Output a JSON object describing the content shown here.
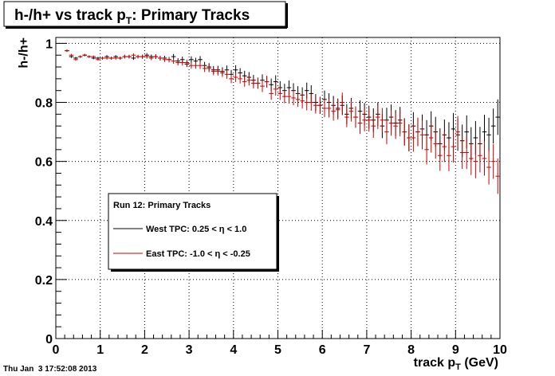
{
  "chart_data": {
    "type": "scatter",
    "title": {
      "main": "h-/h+ vs track p",
      "sub": "T",
      "rest": ": Primary Tracks"
    },
    "xlabel": {
      "main": "track p",
      "sub": "T",
      "rest": " (GeV)"
    },
    "ylabel": "h-/h+",
    "xlim": [
      0,
      10
    ],
    "ylim": [
      0,
      1.02
    ],
    "x_ticks": [
      0,
      1,
      2,
      3,
      4,
      5,
      6,
      7,
      8,
      9,
      10
    ],
    "x_tick_labels": [
      "0",
      "1",
      "2",
      "3",
      "4",
      "5",
      "6",
      "7",
      "8",
      "9",
      "10"
    ],
    "y_ticks": [
      0,
      0.2,
      0.4,
      0.6,
      0.8,
      1
    ],
    "y_tick_labels": [
      "0",
      "0.2",
      "0.4",
      "0.6",
      "0.8",
      "1"
    ],
    "grid": true,
    "legend_position": "lower-left",
    "legend_title": "Run 12: Primary Tracks",
    "series": [
      {
        "name": "West TPC: 0.25 < η < 1.0",
        "color": "#000000",
        "x": [
          0.25,
          0.35,
          0.45,
          0.55,
          0.65,
          0.75,
          0.85,
          0.95,
          1.05,
          1.15,
          1.25,
          1.35,
          1.45,
          1.55,
          1.65,
          1.75,
          1.85,
          1.95,
          2.05,
          2.15,
          2.25,
          2.35,
          2.45,
          2.55,
          2.65,
          2.75,
          2.85,
          2.95,
          3.05,
          3.15,
          3.25,
          3.35,
          3.45,
          3.55,
          3.65,
          3.75,
          3.85,
          3.95,
          4.05,
          4.15,
          4.25,
          4.35,
          4.45,
          4.55,
          4.65,
          4.75,
          4.85,
          4.95,
          5.05,
          5.15,
          5.25,
          5.35,
          5.45,
          5.55,
          5.65,
          5.75,
          5.85,
          5.95,
          6.05,
          6.15,
          6.25,
          6.35,
          6.45,
          6.55,
          6.65,
          6.75,
          6.85,
          6.95,
          7.05,
          7.15,
          7.25,
          7.35,
          7.45,
          7.55,
          7.65,
          7.75,
          7.85,
          7.95,
          8.05,
          8.15,
          8.25,
          8.35,
          8.45,
          8.55,
          8.65,
          8.75,
          8.85,
          8.95,
          9.05,
          9.15,
          9.25,
          9.35,
          9.45,
          9.55,
          9.65,
          9.75,
          9.85,
          9.95
        ],
        "y": [
          0.975,
          0.955,
          0.95,
          0.955,
          0.96,
          0.955,
          0.95,
          0.95,
          0.95,
          0.955,
          0.95,
          0.955,
          0.95,
          0.955,
          0.955,
          0.95,
          0.955,
          0.955,
          0.96,
          0.955,
          0.955,
          0.95,
          0.95,
          0.945,
          0.955,
          0.94,
          0.945,
          0.93,
          0.945,
          0.94,
          0.945,
          0.925,
          0.92,
          0.91,
          0.91,
          0.905,
          0.91,
          0.895,
          0.91,
          0.9,
          0.89,
          0.885,
          0.875,
          0.865,
          0.875,
          0.87,
          0.86,
          0.87,
          0.85,
          0.84,
          0.85,
          0.84,
          0.83,
          0.825,
          0.84,
          0.83,
          0.8,
          0.79,
          0.81,
          0.8,
          0.79,
          0.78,
          0.79,
          0.76,
          0.78,
          0.75,
          0.77,
          0.76,
          0.75,
          0.74,
          0.76,
          0.72,
          0.74,
          0.75,
          0.73,
          0.74,
          0.7,
          0.68,
          0.72,
          0.7,
          0.71,
          0.69,
          0.72,
          0.7,
          0.66,
          0.69,
          0.68,
          0.71,
          0.69,
          0.67,
          0.7,
          0.66,
          0.68,
          0.66,
          0.7,
          0.69,
          0.72,
          0.75
        ],
        "err": [
          0.004,
          0.004,
          0.004,
          0.004,
          0.004,
          0.004,
          0.004,
          0.004,
          0.005,
          0.005,
          0.005,
          0.005,
          0.005,
          0.006,
          0.006,
          0.006,
          0.006,
          0.007,
          0.007,
          0.007,
          0.008,
          0.008,
          0.008,
          0.009,
          0.009,
          0.01,
          0.01,
          0.01,
          0.011,
          0.011,
          0.012,
          0.012,
          0.013,
          0.013,
          0.014,
          0.014,
          0.015,
          0.015,
          0.016,
          0.016,
          0.017,
          0.018,
          0.018,
          0.019,
          0.02,
          0.02,
          0.021,
          0.022,
          0.022,
          0.023,
          0.024,
          0.025,
          0.025,
          0.026,
          0.027,
          0.028,
          0.028,
          0.029,
          0.03,
          0.031,
          0.032,
          0.033,
          0.033,
          0.034,
          0.035,
          0.036,
          0.037,
          0.038,
          0.039,
          0.04,
          0.04,
          0.041,
          0.042,
          0.043,
          0.044,
          0.045,
          0.046,
          0.046,
          0.047,
          0.048,
          0.049,
          0.05,
          0.05,
          0.051,
          0.052,
          0.052,
          0.053,
          0.054,
          0.054,
          0.055,
          0.056,
          0.056,
          0.057,
          0.057,
          0.058,
          0.058,
          0.059,
          0.06
        ]
      },
      {
        "name": "East TPC: -1.0 < η < -0.25",
        "color": "#cc0000",
        "x": [
          0.25,
          0.35,
          0.45,
          0.55,
          0.65,
          0.75,
          0.85,
          0.95,
          1.05,
          1.15,
          1.25,
          1.35,
          1.45,
          1.55,
          1.65,
          1.75,
          1.85,
          1.95,
          2.05,
          2.15,
          2.25,
          2.35,
          2.45,
          2.55,
          2.65,
          2.75,
          2.85,
          2.95,
          3.05,
          3.15,
          3.25,
          3.35,
          3.45,
          3.55,
          3.65,
          3.75,
          3.85,
          3.95,
          4.05,
          4.15,
          4.25,
          4.35,
          4.45,
          4.55,
          4.65,
          4.75,
          4.85,
          4.95,
          5.05,
          5.15,
          5.25,
          5.35,
          5.45,
          5.55,
          5.65,
          5.75,
          5.85,
          5.95,
          6.05,
          6.15,
          6.25,
          6.35,
          6.45,
          6.55,
          6.65,
          6.75,
          6.85,
          6.95,
          7.05,
          7.15,
          7.25,
          7.35,
          7.45,
          7.55,
          7.65,
          7.75,
          7.85,
          7.95,
          8.05,
          8.15,
          8.25,
          8.35,
          8.45,
          8.55,
          8.65,
          8.75,
          8.85,
          8.95,
          9.05,
          9.15,
          9.25,
          9.35,
          9.45,
          9.55,
          9.65,
          9.75,
          9.85,
          9.95
        ],
        "y": [
          0.975,
          0.96,
          0.945,
          0.955,
          0.96,
          0.955,
          0.955,
          0.945,
          0.95,
          0.95,
          0.95,
          0.95,
          0.95,
          0.955,
          0.955,
          0.96,
          0.955,
          0.955,
          0.955,
          0.95,
          0.955,
          0.95,
          0.945,
          0.945,
          0.94,
          0.935,
          0.935,
          0.935,
          0.925,
          0.925,
          0.925,
          0.915,
          0.915,
          0.905,
          0.905,
          0.9,
          0.895,
          0.88,
          0.885,
          0.88,
          0.87,
          0.875,
          0.865,
          0.865,
          0.855,
          0.87,
          0.83,
          0.845,
          0.83,
          0.82,
          0.82,
          0.815,
          0.81,
          0.805,
          0.8,
          0.8,
          0.79,
          0.79,
          0.78,
          0.78,
          0.77,
          0.775,
          0.8,
          0.75,
          0.77,
          0.75,
          0.73,
          0.74,
          0.74,
          0.72,
          0.75,
          0.74,
          0.7,
          0.73,
          0.72,
          0.73,
          0.7,
          0.68,
          0.68,
          0.7,
          0.69,
          0.64,
          0.68,
          0.66,
          0.62,
          0.65,
          0.62,
          0.65,
          0.7,
          0.63,
          0.63,
          0.61,
          0.6,
          0.62,
          0.61,
          0.58,
          0.6,
          0.55
        ],
        "err": [
          0.004,
          0.004,
          0.004,
          0.004,
          0.004,
          0.004,
          0.004,
          0.004,
          0.005,
          0.005,
          0.005,
          0.005,
          0.005,
          0.006,
          0.006,
          0.006,
          0.006,
          0.007,
          0.007,
          0.007,
          0.008,
          0.008,
          0.008,
          0.009,
          0.009,
          0.01,
          0.01,
          0.01,
          0.011,
          0.011,
          0.012,
          0.012,
          0.013,
          0.013,
          0.014,
          0.014,
          0.015,
          0.015,
          0.016,
          0.016,
          0.017,
          0.018,
          0.018,
          0.019,
          0.02,
          0.02,
          0.021,
          0.022,
          0.022,
          0.023,
          0.024,
          0.025,
          0.025,
          0.026,
          0.027,
          0.028,
          0.028,
          0.029,
          0.03,
          0.031,
          0.032,
          0.033,
          0.033,
          0.034,
          0.035,
          0.036,
          0.037,
          0.038,
          0.039,
          0.04,
          0.04,
          0.041,
          0.042,
          0.043,
          0.044,
          0.045,
          0.046,
          0.046,
          0.047,
          0.048,
          0.049,
          0.05,
          0.05,
          0.051,
          0.052,
          0.052,
          0.053,
          0.054,
          0.054,
          0.055,
          0.056,
          0.056,
          0.057,
          0.057,
          0.058,
          0.058,
          0.059,
          0.06
        ]
      }
    ]
  },
  "footer": {
    "timestamp": "Thu Jan  3 17:52:08 2013"
  }
}
